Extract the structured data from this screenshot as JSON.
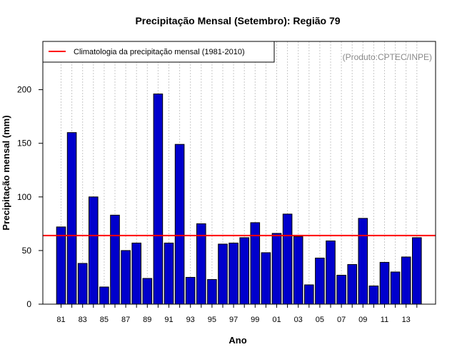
{
  "chart_data": {
    "type": "bar",
    "title": "Precipitação Mensal (Setembro): Região 79",
    "xlabel": "Ano",
    "ylabel": "Precipitação mensal (mm)",
    "ylim": [
      0,
      245
    ],
    "yticks": [
      0,
      50,
      100,
      150,
      200
    ],
    "grid": "vertical-dotted",
    "credit": "(Produto:CPTEC/INPE)",
    "colors": {
      "bar": "#0000cc",
      "bar_edge": "#000000",
      "reference_line": "#ff0000",
      "grid": "#c8c8c8"
    },
    "categories": [
      "81",
      "82",
      "83",
      "84",
      "85",
      "86",
      "87",
      "88",
      "89",
      "90",
      "91",
      "92",
      "93",
      "94",
      "95",
      "96",
      "97",
      "98",
      "99",
      "00",
      "01",
      "02",
      "03",
      "04",
      "05",
      "06",
      "07",
      "08",
      "09",
      "10",
      "11",
      "12",
      "13",
      "14"
    ],
    "xtick_labels": [
      "81",
      "83",
      "85",
      "87",
      "89",
      "91",
      "93",
      "95",
      "97",
      "99",
      "01",
      "03",
      "05",
      "07",
      "09",
      "11",
      "13"
    ],
    "series": [
      {
        "name": "Precipitação mensal",
        "values": [
          72,
          160,
          38,
          100,
          16,
          83,
          50,
          57,
          24,
          196,
          57,
          149,
          25,
          75,
          23,
          56,
          57,
          62,
          76,
          48,
          66,
          84,
          63,
          18,
          43,
          59,
          27,
          37,
          80,
          17,
          39,
          30,
          44,
          62
        ]
      }
    ],
    "reference_line": {
      "value": 64,
      "label": "Climatologia da precipitação mensal (1981-2010)"
    },
    "legend": {
      "position": "top-left",
      "entries": [
        "Climatologia da precipitação mensal (1981-2010)"
      ]
    }
  }
}
